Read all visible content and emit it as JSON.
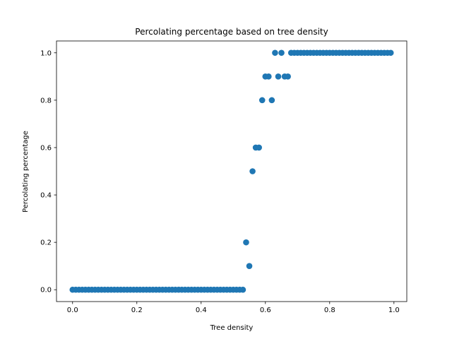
{
  "chart_data": {
    "type": "scatter",
    "title": "Percolating percentage based on tree density",
    "xlabel": "Tree density",
    "ylabel": "Percolating percentage",
    "xlim": [
      -0.05,
      1.04
    ],
    "ylim": [
      -0.05,
      1.05
    ],
    "xticks": [
      0.0,
      0.2,
      0.4,
      0.6,
      0.8,
      1.0
    ],
    "xtick_labels": [
      "0.0",
      "0.2",
      "0.4",
      "0.6",
      "0.8",
      "1.0"
    ],
    "yticks": [
      0.0,
      0.2,
      0.4,
      0.6,
      0.8,
      1.0
    ],
    "ytick_labels": [
      "0.0",
      "0.2",
      "0.4",
      "0.6",
      "0.8",
      "1.0"
    ],
    "grid": false,
    "marker_color": "#1f77b4",
    "series": [
      {
        "x": [
          0.0,
          0.01,
          0.02,
          0.03,
          0.04,
          0.05,
          0.06,
          0.07,
          0.08,
          0.09,
          0.1,
          0.11,
          0.12,
          0.13,
          0.14,
          0.15,
          0.16,
          0.17,
          0.18,
          0.19,
          0.2,
          0.21,
          0.22,
          0.23,
          0.24,
          0.25,
          0.26,
          0.27,
          0.28,
          0.29,
          0.3,
          0.31,
          0.32,
          0.33,
          0.34,
          0.35,
          0.36,
          0.37,
          0.38,
          0.39,
          0.4,
          0.41,
          0.42,
          0.43,
          0.44,
          0.45,
          0.46,
          0.47,
          0.48,
          0.49,
          0.5,
          0.51,
          0.52,
          0.53,
          0.54,
          0.55,
          0.56,
          0.57,
          0.58,
          0.59,
          0.6,
          0.61,
          0.62,
          0.63,
          0.64,
          0.65,
          0.66,
          0.67,
          0.68,
          0.69,
          0.7,
          0.71,
          0.72,
          0.73,
          0.74,
          0.75,
          0.76,
          0.77,
          0.78,
          0.79,
          0.8,
          0.81,
          0.82,
          0.83,
          0.84,
          0.85,
          0.86,
          0.87,
          0.88,
          0.89,
          0.9,
          0.91,
          0.92,
          0.93,
          0.94,
          0.95,
          0.96,
          0.97,
          0.98,
          0.99
        ],
        "y": [
          0.0,
          0.0,
          0.0,
          0.0,
          0.0,
          0.0,
          0.0,
          0.0,
          0.0,
          0.0,
          0.0,
          0.0,
          0.0,
          0.0,
          0.0,
          0.0,
          0.0,
          0.0,
          0.0,
          0.0,
          0.0,
          0.0,
          0.0,
          0.0,
          0.0,
          0.0,
          0.0,
          0.0,
          0.0,
          0.0,
          0.0,
          0.0,
          0.0,
          0.0,
          0.0,
          0.0,
          0.0,
          0.0,
          0.0,
          0.0,
          0.0,
          0.0,
          0.0,
          0.0,
          0.0,
          0.0,
          0.0,
          0.0,
          0.0,
          0.0,
          0.0,
          0.0,
          0.0,
          0.0,
          0.2,
          0.1,
          0.5,
          0.6,
          0.6,
          0.8,
          0.9,
          0.9,
          0.8,
          1.0,
          0.9,
          1.0,
          0.9,
          0.9,
          1.0,
          1.0,
          1.0,
          1.0,
          1.0,
          1.0,
          1.0,
          1.0,
          1.0,
          1.0,
          1.0,
          1.0,
          1.0,
          1.0,
          1.0,
          1.0,
          1.0,
          1.0,
          1.0,
          1.0,
          1.0,
          1.0,
          1.0,
          1.0,
          1.0,
          1.0,
          1.0,
          1.0,
          1.0,
          1.0,
          1.0,
          1.0
        ]
      }
    ]
  }
}
